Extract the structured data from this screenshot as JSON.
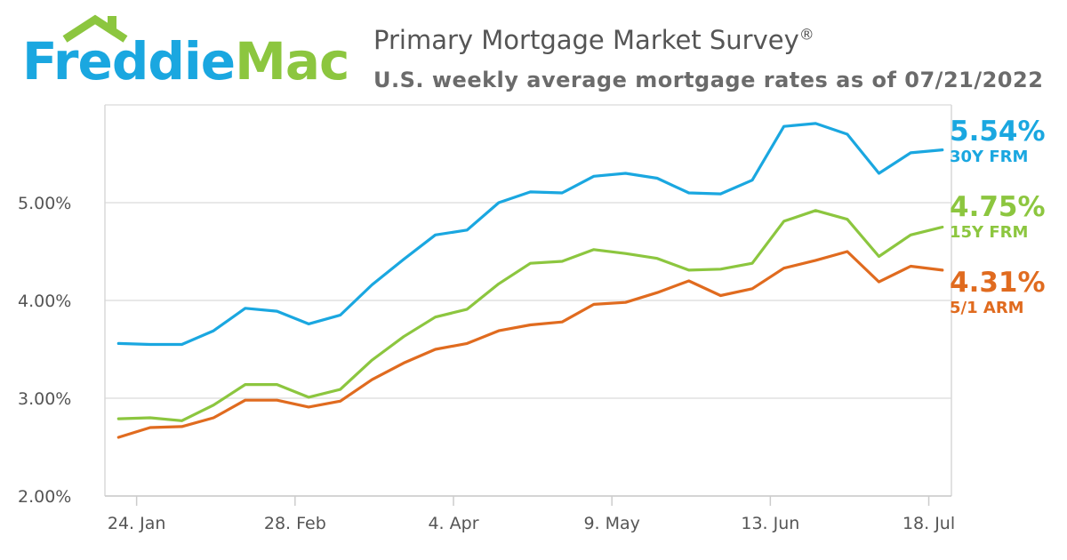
{
  "logo": {
    "part1": "Freddie",
    "part2": "Mac"
  },
  "header": {
    "title": "Primary Mortgage Market Survey",
    "registered": "®",
    "subtitle": "U.S. weekly average mortgage rates as of 07/21/2022"
  },
  "colors": {
    "frm30": "#1aa7e0",
    "frm15": "#8cc63f",
    "arm51": "#e06b1f",
    "grid": "#e0e0e0",
    "text": "#555555"
  },
  "chart_data": {
    "type": "line",
    "title": "Primary Mortgage Market Survey",
    "subtitle": "U.S. weekly average mortgage rates as of 07/21/2022",
    "x": [
      "2022-01-20",
      "2022-01-27",
      "2022-02-03",
      "2022-02-10",
      "2022-02-17",
      "2022-02-24",
      "2022-03-03",
      "2022-03-10",
      "2022-03-17",
      "2022-03-24",
      "2022-03-31",
      "2022-04-07",
      "2022-04-14",
      "2022-04-21",
      "2022-04-28",
      "2022-05-05",
      "2022-05-12",
      "2022-05-19",
      "2022-05-26",
      "2022-06-02",
      "2022-06-09",
      "2022-06-16",
      "2022-06-23",
      "2022-06-30",
      "2022-07-07",
      "2022-07-14",
      "2022-07-21"
    ],
    "x_tick_labels": [
      "24. Jan",
      "28. Feb",
      "4. Apr",
      "9. May",
      "13. Jun",
      "18. Jul"
    ],
    "y_tick_labels": [
      "2.00%",
      "3.00%",
      "4.00%",
      "5.00%"
    ],
    "ylim": [
      2.0,
      6.0
    ],
    "grid": true,
    "legend": "right",
    "series": [
      {
        "name": "30Y FRM",
        "label": "5.54%",
        "key": "frm30",
        "values": [
          3.56,
          3.55,
          3.55,
          3.69,
          3.92,
          3.89,
          3.76,
          3.85,
          4.16,
          4.42,
          4.67,
          4.72,
          5.0,
          5.11,
          5.1,
          5.27,
          5.3,
          5.25,
          5.1,
          5.09,
          5.23,
          5.78,
          5.81,
          5.7,
          5.3,
          5.51,
          5.54
        ]
      },
      {
        "name": "15Y FRM",
        "label": "4.75%",
        "key": "frm15",
        "values": [
          2.79,
          2.8,
          2.77,
          2.93,
          3.14,
          3.14,
          3.01,
          3.09,
          3.39,
          3.63,
          3.83,
          3.91,
          4.17,
          4.38,
          4.4,
          4.52,
          4.48,
          4.43,
          4.31,
          4.32,
          4.38,
          4.81,
          4.92,
          4.83,
          4.45,
          4.67,
          4.75
        ]
      },
      {
        "name": "5/1 ARM",
        "label": "4.31%",
        "key": "arm51",
        "values": [
          2.6,
          2.7,
          2.71,
          2.8,
          2.98,
          2.98,
          2.91,
          2.97,
          3.19,
          3.36,
          3.5,
          3.56,
          3.69,
          3.75,
          3.78,
          3.96,
          3.98,
          4.08,
          4.2,
          4.05,
          4.12,
          4.33,
          4.41,
          4.5,
          4.19,
          4.35,
          4.31
        ]
      }
    ]
  }
}
